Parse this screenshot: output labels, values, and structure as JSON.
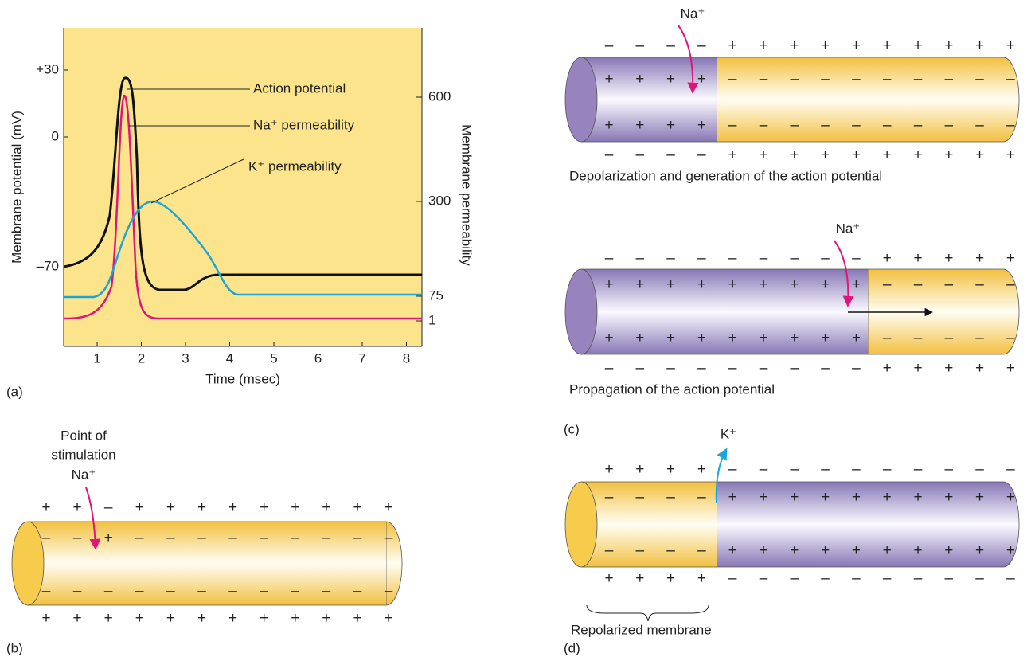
{
  "panel_a": {
    "label": "(a)",
    "y_axis_label": "Membrane potential (mV)",
    "y2_axis_label": "Membrane permeability",
    "x_axis_label": "Time (msec)",
    "x_tick_labels": [
      "1",
      "2",
      "3",
      "4",
      "5",
      "6",
      "7",
      "8"
    ],
    "y_tick_labels": [
      "+30",
      "0",
      "–70"
    ],
    "y2_tick_labels": [
      "600",
      "300",
      "75",
      "1"
    ],
    "curve_labels": [
      "Action  potential",
      "Na⁺ permeability",
      "K⁺ permeability"
    ]
  },
  "panel_b": {
    "label": "(b)",
    "stimulation_label": [
      "Point of",
      "stimulation"
    ],
    "ion": "Na⁺",
    "signs": {
      "outer_top": [
        "+",
        "+",
        "–",
        "+",
        "+",
        "+",
        "+",
        "+",
        "+",
        "+",
        "+",
        "+"
      ],
      "inner_top": [
        "–",
        "–",
        "+",
        "–",
        "–",
        "–",
        "–",
        "–",
        "–",
        "–",
        "–",
        "–"
      ],
      "inner_bottom": [
        "–",
        "–",
        "–",
        "–",
        "–",
        "–",
        "–",
        "–",
        "–",
        "–",
        "–",
        "–"
      ],
      "outer_bottom": [
        "+",
        "+",
        "+",
        "+",
        "+",
        "+",
        "+",
        "+",
        "+",
        "+",
        "+",
        "+"
      ]
    }
  },
  "panel_c": {
    "label": "(c)",
    "steps": [
      {
        "ion": "Na⁺",
        "caption": "Depolarization and generation of the action potential",
        "signs": {
          "outer_top": [
            "–",
            "–",
            "–",
            "–",
            "+",
            "+",
            "+",
            "+",
            "+",
            "+",
            "+",
            "+",
            "+",
            "+"
          ],
          "inner_top": [
            "+",
            "+",
            "+",
            "+",
            "–",
            "–",
            "–",
            "–",
            "–",
            "–",
            "–",
            "–",
            "–",
            "–"
          ],
          "inner_bottom": [
            "+",
            "+",
            "+",
            "+",
            "–",
            "–",
            "–",
            "–",
            "–",
            "–",
            "–",
            "–",
            "–",
            "–"
          ],
          "outer_bottom": [
            "–",
            "–",
            "–",
            "–",
            "+",
            "+",
            "+",
            "+",
            "+",
            "+",
            "+",
            "+",
            "+",
            "+"
          ]
        }
      },
      {
        "ion": "Na⁺",
        "caption": "Propagation of the action potential",
        "signs": {
          "outer_top": [
            "–",
            "–",
            "–",
            "–",
            "–",
            "–",
            "–",
            "–",
            "–",
            "+",
            "+",
            "+",
            "+",
            "+"
          ],
          "inner_top": [
            "+",
            "+",
            "+",
            "+",
            "+",
            "+",
            "+",
            "+",
            "+",
            "–",
            "–",
            "–",
            "–",
            "–"
          ],
          "inner_bottom": [
            "+",
            "+",
            "+",
            "+",
            "+",
            "+",
            "+",
            "+",
            "+",
            "–",
            "–",
            "–",
            "–",
            "–"
          ],
          "outer_bottom": [
            "–",
            "–",
            "–",
            "–",
            "–",
            "–",
            "–",
            "–",
            "–",
            "+",
            "+",
            "+",
            "+",
            "+"
          ]
        }
      }
    ]
  },
  "panel_d": {
    "label": "(d)",
    "ion": "K⁺",
    "caption": "Repolarized membrane",
    "signs": {
      "outer_top": [
        "+",
        "+",
        "+",
        "+",
        "–",
        "–",
        "–",
        "–",
        "–",
        "–",
        "–",
        "–",
        "–",
        "–"
      ],
      "inner_top": [
        "–",
        "–",
        "–",
        "–",
        "+",
        "+",
        "+",
        "+",
        "+",
        "+",
        "+",
        "+",
        "+",
        "+"
      ],
      "inner_bottom": [
        "–",
        "–",
        "–",
        "–",
        "+",
        "+",
        "+",
        "+",
        "+",
        "+",
        "+",
        "+",
        "+",
        "+"
      ],
      "outer_bottom": [
        "+",
        "+",
        "+",
        "+",
        "–",
        "–",
        "–",
        "–",
        "–",
        "–",
        "–",
        "–",
        "–",
        "–"
      ]
    }
  }
}
